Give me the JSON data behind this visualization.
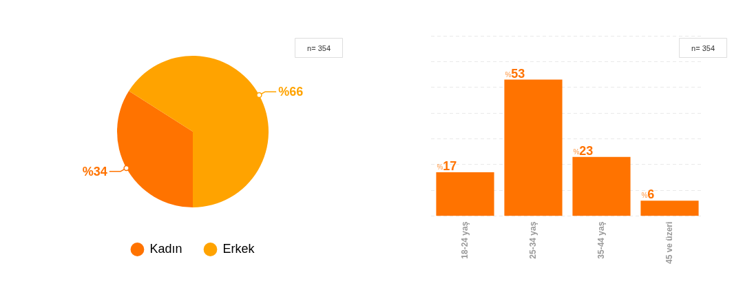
{
  "chart_data": [
    {
      "type": "pie",
      "categories": [
        "Kadın",
        "Erkek"
      ],
      "values": [
        34,
        66
      ],
      "colors": [
        "#ff7300",
        "#ffa300"
      ],
      "value_labels": [
        "%34",
        "%66"
      ],
      "legend": "bottom",
      "annotations": [
        "n= 354"
      ]
    },
    {
      "type": "bar",
      "categories": [
        "18-24 yaş",
        "25-34 yaş",
        "35-44 yaş",
        "45 ve üzeri"
      ],
      "values": [
        17,
        53,
        23,
        6
      ],
      "color": "#ff7300",
      "value_labels": [
        "%17",
        "%53",
        "%23",
        "%6"
      ],
      "ylim": [
        0,
        70
      ],
      "yticks": [
        {
          "value": 0,
          "label": null
        },
        {
          "value": 10,
          "label": null
        },
        {
          "value": 20,
          "label": null
        },
        {
          "value": 30,
          "label": null
        },
        {
          "value": 40,
          "label": null
        },
        {
          "value": 50,
          "label": null
        },
        {
          "value": 60,
          "label": null
        },
        {
          "value": 70,
          "label": null
        }
      ],
      "grid": "y",
      "tick_labels": "x",
      "annotations": [
        "n= 354"
      ]
    }
  ]
}
